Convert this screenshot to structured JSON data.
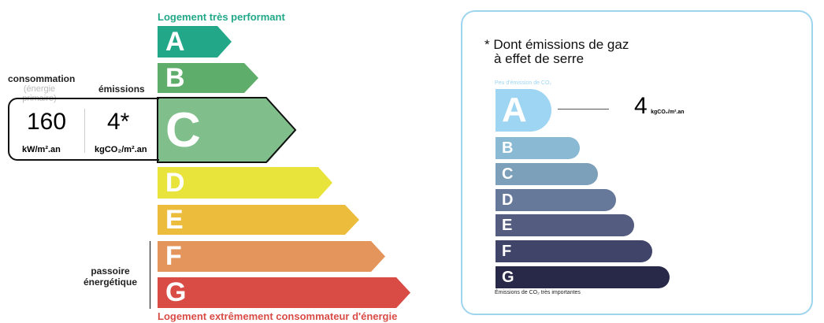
{
  "energy": {
    "top_label": "Logement très performant",
    "bottom_label": "Logement extrêmement consommateur d'énergie",
    "classes": [
      {
        "letter": "A",
        "color": "#22a888"
      },
      {
        "letter": "B",
        "color": "#5fad6a"
      },
      {
        "letter": "C",
        "color": "#80bf8b"
      },
      {
        "letter": "D",
        "color": "#e8e43c"
      },
      {
        "letter": "E",
        "color": "#ecbc3c"
      },
      {
        "letter": "F",
        "color": "#e4955c"
      },
      {
        "letter": "G",
        "color": "#d94b45"
      }
    ],
    "current_class": "C",
    "consumption_label": "consommation",
    "consumption_sub": "(énergie primaire)",
    "emissions_label": "émissions",
    "consumption_value": "160",
    "consumption_unit": "kW/m².an",
    "emissions_value": "4*",
    "emissions_unit": "kgCO₂/m².an",
    "passoire_label": "passoire\nénergétique"
  },
  "ges": {
    "title_line1": "* Dont émissions de gaz",
    "title_line2": "à effet de serre",
    "top_label": "Peu d'émission de CO₂",
    "bottom_label": "Émissions de CO₂ très importantes",
    "classes": [
      {
        "letter": "A",
        "color": "#9dd5f2"
      },
      {
        "letter": "B",
        "color": "#8ab9d3"
      },
      {
        "letter": "C",
        "color": "#7c9fba"
      },
      {
        "letter": "D",
        "color": "#67799a"
      },
      {
        "letter": "E",
        "color": "#545d80"
      },
      {
        "letter": "F",
        "color": "#3f4468"
      },
      {
        "letter": "G",
        "color": "#282848"
      }
    ],
    "current_class": "A",
    "value": "4",
    "unit": "kgCO₂/m².an",
    "border_color": "#9fd4ef"
  }
}
